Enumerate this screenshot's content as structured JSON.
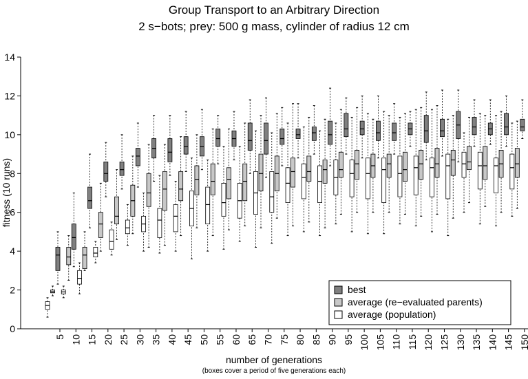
{
  "chart_data": {
    "type": "box",
    "title": "Group Transport to an Arbitrary Direction",
    "subtitle": "2 s−bots; prey: 500 g mass, cylinder of radius 12 cm",
    "x_label": "number of generations",
    "x_sublabel": "(boxes cover a period of five generations each)",
    "y_label": "fitness (10 runs)",
    "categories": [
      "5",
      "10",
      "15",
      "20",
      "25",
      "30",
      "35",
      "40",
      "45",
      "50",
      "55",
      "60",
      "65",
      "70",
      "75",
      "80",
      "85",
      "90",
      "95",
      "100",
      "105",
      "110",
      "115",
      "120",
      "125",
      "130",
      "135",
      "140",
      "145",
      "150"
    ],
    "ylim": [
      0,
      14
    ],
    "yticks": [
      0,
      2,
      4,
      6,
      8,
      10,
      12,
      14
    ],
    "grid": false,
    "legend": "lower right",
    "series": [
      {
        "name": "best",
        "color": "#808080",
        "values": [
          [
            2.3,
            3.0,
            3.8,
            4.2,
            5.0
          ],
          [
            3.2,
            4.1,
            4.7,
            5.4,
            7.0
          ],
          [
            5.2,
            6.2,
            6.6,
            7.3,
            9.0
          ],
          [
            6.8,
            7.6,
            8.0,
            8.6,
            9.6
          ],
          [
            7.2,
            7.9,
            8.2,
            8.6,
            10.0
          ],
          [
            7.3,
            8.4,
            8.9,
            9.3,
            10.6
          ],
          [
            7.6,
            8.8,
            9.3,
            9.8,
            11.0
          ],
          [
            7.9,
            8.6,
            9.1,
            9.8,
            11.0
          ],
          [
            8.1,
            9.0,
            9.4,
            9.9,
            11.2
          ],
          [
            8.2,
            8.9,
            9.4,
            9.9,
            11.3
          ],
          [
            8.5,
            9.4,
            9.8,
            10.3,
            11.0
          ],
          [
            8.7,
            9.4,
            9.8,
            10.2,
            11.2
          ],
          [
            8.0,
            9.2,
            9.7,
            10.6,
            11.8
          ],
          [
            7.8,
            9.0,
            9.7,
            10.6,
            11.9
          ],
          [
            8.4,
            9.5,
            9.8,
            10.3,
            11.4
          ],
          [
            8.8,
            9.8,
            10.0,
            10.3,
            11.6
          ],
          [
            9.0,
            9.7,
            10.1,
            10.4,
            11.5
          ],
          [
            8.4,
            9.5,
            10.0,
            10.7,
            12.4
          ],
          [
            9.0,
            9.9,
            10.3,
            11.1,
            11.9
          ],
          [
            8.8,
            10.0,
            10.3,
            10.7,
            12.0
          ],
          [
            8.8,
            9.7,
            10.1,
            10.7,
            12.0
          ],
          [
            9.0,
            9.7,
            10.1,
            10.6,
            11.6
          ],
          [
            9.4,
            10.0,
            10.3,
            10.6,
            11.2
          ],
          [
            8.7,
            9.6,
            10.2,
            11.0,
            12.2
          ],
          [
            8.9,
            9.9,
            10.2,
            10.8,
            12.3
          ],
          [
            8.6,
            9.8,
            10.5,
            11.2,
            12.3
          ],
          [
            9.4,
            10.0,
            10.4,
            10.9,
            11.8
          ],
          [
            9.5,
            10.0,
            10.3,
            10.6,
            11.8
          ],
          [
            9.4,
            10.0,
            10.4,
            11.1,
            12.0
          ],
          [
            9.8,
            10.2,
            10.4,
            10.8,
            11.8
          ]
        ]
      },
      {
        "name": "average (re−evaluated parents)",
        "color": "#c8c8c8",
        "values": [
          [
            1.7,
            1.85,
            1.9,
            2.0,
            2.2
          ],
          [
            2.5,
            3.3,
            3.7,
            4.2,
            4.8
          ],
          [
            3.0,
            3.1,
            3.8,
            4.2,
            5.0
          ],
          [
            4.0,
            4.7,
            5.4,
            6.0,
            7.5
          ],
          [
            4.6,
            5.4,
            5.8,
            6.8,
            8.2
          ],
          [
            4.9,
            5.8,
            6.6,
            7.4,
            8.9
          ],
          [
            4.2,
            6.3,
            7.0,
            8.0,
            9.5
          ],
          [
            4.3,
            6.1,
            7.2,
            8.1,
            9.5
          ],
          [
            4.8,
            6.6,
            7.2,
            8.1,
            9.9
          ],
          [
            5.2,
            6.9,
            7.7,
            8.4,
            10.0
          ],
          [
            4.8,
            6.9,
            7.6,
            8.5,
            10.3
          ],
          [
            5.1,
            6.7,
            7.7,
            8.3,
            10.3
          ],
          [
            5.3,
            6.6,
            7.6,
            8.5,
            10.6
          ],
          [
            5.2,
            7.1,
            8.0,
            9.0,
            11.0
          ],
          [
            5.7,
            7.1,
            8.0,
            8.9,
            11.1
          ],
          [
            5.3,
            7.3,
            8.1,
            8.8,
            11.6
          ],
          [
            5.5,
            7.6,
            8.1,
            8.9,
            10.9
          ],
          [
            5.2,
            7.5,
            8.2,
            8.7,
            10.8
          ],
          [
            5.9,
            7.8,
            8.2,
            9.1,
            11.3
          ],
          [
            6.0,
            7.7,
            8.5,
            9.2,
            11.4
          ],
          [
            6.0,
            7.8,
            8.4,
            9.0,
            10.8
          ],
          [
            6.0,
            7.8,
            8.5,
            9.0,
            11.0
          ],
          [
            5.9,
            7.6,
            8.2,
            9.1,
            11.1
          ],
          [
            5.8,
            7.7,
            8.5,
            9.2,
            11.4
          ],
          [
            5.9,
            7.8,
            8.5,
            9.3,
            11.5
          ],
          [
            5.7,
            7.9,
            8.7,
            9.2,
            11.0
          ],
          [
            6.5,
            8.2,
            8.6,
            9.4,
            10.9
          ],
          [
            6.3,
            7.7,
            8.4,
            9.4,
            11.0
          ],
          [
            6.0,
            7.8,
            8.5,
            9.2,
            11.2
          ],
          [
            6.2,
            7.8,
            8.5,
            9.3,
            10.7
          ]
        ]
      },
      {
        "name": "average (population)",
        "color": "#ffffff",
        "values": [
          [
            0.6,
            1.0,
            1.2,
            1.4,
            1.6
          ],
          [
            1.6,
            1.8,
            1.9,
            2.0,
            2.2
          ],
          [
            1.8,
            2.3,
            2.6,
            3.0,
            3.4
          ],
          [
            3.4,
            3.7,
            3.9,
            4.2,
            4.5
          ],
          [
            3.8,
            4.1,
            4.5,
            5.1,
            5.5
          ],
          [
            4.3,
            4.9,
            5.2,
            5.6,
            6.4
          ],
          [
            4.0,
            5.0,
            5.4,
            5.8,
            7.0
          ],
          [
            3.9,
            4.7,
            5.6,
            6.2,
            7.9
          ],
          [
            4.0,
            5.0,
            5.8,
            6.4,
            7.6
          ],
          [
            3.6,
            5.3,
            6.2,
            7.1,
            8.8
          ],
          [
            4.0,
            5.4,
            6.4,
            7.3,
            8.7
          ],
          [
            4.1,
            5.8,
            6.5,
            7.5,
            9.4
          ],
          [
            4.5,
            5.7,
            6.6,
            7.5,
            9.4
          ],
          [
            4.2,
            5.9,
            7.0,
            8.1,
            10.2
          ],
          [
            4.4,
            6.0,
            6.8,
            8.1,
            10.1
          ],
          [
            4.8,
            6.5,
            7.5,
            8.3,
            10.6
          ],
          [
            5.0,
            6.7,
            7.8,
            8.5,
            10.4
          ],
          [
            4.8,
            6.5,
            7.6,
            8.4,
            10.2
          ],
          [
            5.4,
            6.9,
            7.8,
            8.7,
            10.6
          ],
          [
            5.0,
            6.8,
            8.0,
            8.7,
            10.9
          ],
          [
            4.9,
            6.7,
            8.0,
            8.8,
            11.1
          ],
          [
            4.9,
            6.5,
            8.2,
            8.8,
            11.2
          ],
          [
            5.4,
            6.8,
            8.0,
            8.9,
            10.9
          ],
          [
            5.3,
            6.9,
            8.3,
            8.9,
            11.3
          ],
          [
            5.0,
            6.8,
            8.3,
            8.8,
            11.3
          ],
          [
            4.8,
            6.7,
            8.4,
            9.0,
            10.8
          ],
          [
            6.0,
            7.8,
            8.5,
            9.1,
            10.1
          ],
          [
            5.4,
            7.2,
            8.4,
            9.1,
            11.1
          ],
          [
            5.3,
            7.0,
            8.4,
            8.8,
            11.0
          ],
          [
            5.8,
            7.2,
            8.3,
            9.0,
            10.6
          ]
        ]
      }
    ]
  }
}
